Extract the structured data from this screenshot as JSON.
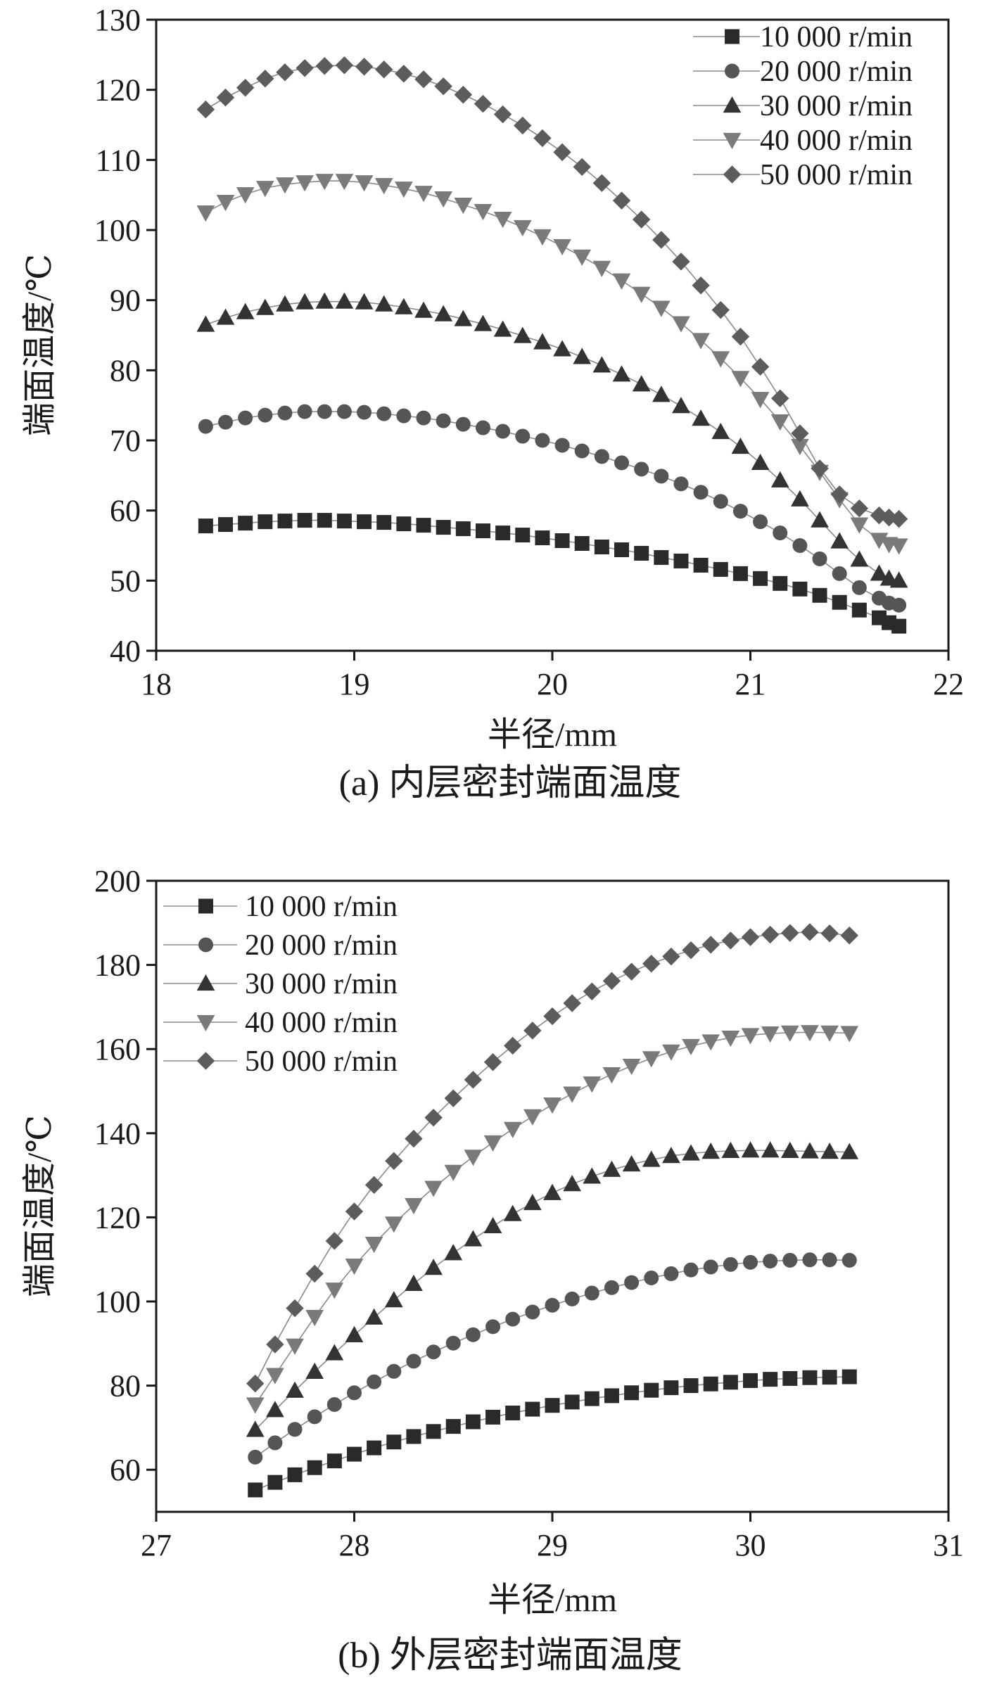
{
  "chart_data": [
    {
      "type": "line",
      "caption": "(a) 内层密封端面温度",
      "xlabel": "半径/mm",
      "ylabel": "端面温度/℃",
      "xlim": [
        18,
        22
      ],
      "ylim": [
        40,
        130
      ],
      "xticks": [
        18,
        19,
        20,
        21,
        22
      ],
      "yticks": [
        40,
        50,
        60,
        70,
        80,
        90,
        100,
        110,
        120,
        130
      ],
      "legend_position": "top-right",
      "grid": false,
      "x": [
        18.25,
        18.35,
        18.45,
        18.55,
        18.65,
        18.75,
        18.85,
        18.95,
        19.05,
        19.15,
        19.25,
        19.35,
        19.45,
        19.55,
        19.65,
        19.75,
        19.85,
        19.95,
        20.05,
        20.15,
        20.25,
        20.35,
        20.45,
        20.55,
        20.65,
        20.75,
        20.85,
        20.95,
        21.05,
        21.15,
        21.25,
        21.35,
        21.45,
        21.55,
        21.65,
        21.7,
        21.75
      ],
      "series": [
        {
          "name": "10 000 r/min",
          "marker": "square",
          "values": [
            57.8,
            58.0,
            58.2,
            58.4,
            58.5,
            58.6,
            58.6,
            58.5,
            58.4,
            58.3,
            58.1,
            57.9,
            57.6,
            57.4,
            57.1,
            56.8,
            56.5,
            56.1,
            55.7,
            55.3,
            54.8,
            54.4,
            53.9,
            53.3,
            52.8,
            52.2,
            51.6,
            51.0,
            50.3,
            49.6,
            48.8,
            47.9,
            46.9,
            45.8,
            44.7,
            44.0,
            43.5
          ]
        },
        {
          "name": "20 000 r/min",
          "marker": "circle",
          "values": [
            72.0,
            72.6,
            73.2,
            73.6,
            73.9,
            74.1,
            74.1,
            74.1,
            74.0,
            73.8,
            73.5,
            73.2,
            72.8,
            72.3,
            71.8,
            71.3,
            70.6,
            70.0,
            69.3,
            68.5,
            67.7,
            66.8,
            65.9,
            64.9,
            63.8,
            62.6,
            61.3,
            59.9,
            58.4,
            56.8,
            55.0,
            53.1,
            51.0,
            49.0,
            47.5,
            46.8,
            46.5
          ]
        },
        {
          "name": "30 000 r/min",
          "marker": "triangle-up",
          "values": [
            86.5,
            87.5,
            88.3,
            88.9,
            89.4,
            89.7,
            89.8,
            89.8,
            89.7,
            89.4,
            89.0,
            88.5,
            88.0,
            87.3,
            86.6,
            85.8,
            84.9,
            84.0,
            83.0,
            81.9,
            80.7,
            79.4,
            78.0,
            76.5,
            74.9,
            73.1,
            71.2,
            69.1,
            66.8,
            64.3,
            61.6,
            58.6,
            55.6,
            53.0,
            51.0,
            50.3,
            50.0
          ]
        },
        {
          "name": "40 000 r/min",
          "marker": "triangle-down",
          "values": [
            102.5,
            104.0,
            105.1,
            106.0,
            106.5,
            106.8,
            107.0,
            107.0,
            106.8,
            106.4,
            105.9,
            105.3,
            104.5,
            103.6,
            102.7,
            101.6,
            100.4,
            99.1,
            97.7,
            96.2,
            94.6,
            92.8,
            90.9,
            88.9,
            86.7,
            84.3,
            81.7,
            78.9,
            75.9,
            72.7,
            69.2,
            65.5,
            61.6,
            58.0,
            55.8,
            55.2,
            55.0
          ]
        },
        {
          "name": "50 000 r/min",
          "marker": "diamond",
          "values": [
            117.2,
            118.9,
            120.3,
            121.6,
            122.5,
            123.1,
            123.4,
            123.5,
            123.3,
            122.9,
            122.3,
            121.5,
            120.5,
            119.3,
            118.0,
            116.5,
            114.9,
            113.1,
            111.1,
            109.0,
            106.7,
            104.2,
            101.5,
            98.6,
            95.5,
            92.1,
            88.6,
            84.8,
            80.5,
            76.0,
            71.0,
            66.0,
            62.3,
            60.3,
            59.3,
            59.0,
            58.8
          ]
        }
      ]
    },
    {
      "type": "line",
      "caption": "(b) 外层密封端面温度",
      "xlabel": "半径/mm",
      "ylabel": "端面温度/℃",
      "xlim": [
        27,
        31
      ],
      "ylim": [
        50,
        200
      ],
      "xticks": [
        27,
        28,
        29,
        30,
        31
      ],
      "yticks": [
        60,
        80,
        100,
        120,
        140,
        160,
        180,
        200
      ],
      "legend_position": "top-left",
      "grid": false,
      "x": [
        27.5,
        27.6,
        27.7,
        27.8,
        27.9,
        28.0,
        28.1,
        28.2,
        28.3,
        28.4,
        28.5,
        28.6,
        28.7,
        28.8,
        28.9,
        29.0,
        29.1,
        29.2,
        29.3,
        29.4,
        29.5,
        29.6,
        29.7,
        29.8,
        29.9,
        30.0,
        30.1,
        30.2,
        30.3,
        30.4,
        30.5
      ],
      "series": [
        {
          "name": "10 000 r/min",
          "marker": "square",
          "values": [
            55.2,
            57.0,
            58.8,
            60.5,
            62.1,
            63.7,
            65.2,
            66.6,
            67.9,
            69.1,
            70.3,
            71.4,
            72.5,
            73.5,
            74.4,
            75.3,
            76.1,
            76.9,
            77.6,
            78.3,
            78.9,
            79.5,
            80.0,
            80.4,
            80.8,
            81.2,
            81.5,
            81.7,
            81.9,
            82.0,
            82.1
          ]
        },
        {
          "name": "20 000 r/min",
          "marker": "circle",
          "values": [
            63.0,
            66.4,
            69.6,
            72.6,
            75.5,
            78.3,
            80.9,
            83.4,
            85.8,
            88.0,
            90.1,
            92.1,
            94.0,
            95.8,
            97.5,
            99.1,
            100.6,
            102.0,
            103.3,
            104.5,
            105.6,
            106.6,
            107.5,
            108.2,
            108.8,
            109.3,
            109.6,
            109.8,
            109.9,
            109.9,
            109.8
          ]
        },
        {
          "name": "30 000 r/min",
          "marker": "triangle-up",
          "values": [
            69.5,
            74.2,
            78.8,
            83.3,
            87.7,
            92.0,
            96.2,
            100.3,
            104.2,
            108.0,
            111.5,
            114.8,
            117.9,
            120.8,
            123.4,
            125.8,
            127.9,
            129.7,
            131.3,
            132.6,
            133.7,
            134.6,
            135.2,
            135.6,
            135.8,
            135.9,
            135.9,
            135.8,
            135.7,
            135.6,
            135.5
          ]
        },
        {
          "name": "40 000 r/min",
          "marker": "triangle-down",
          "values": [
            75.5,
            82.5,
            89.5,
            96.3,
            102.8,
            108.5,
            113.7,
            118.5,
            122.9,
            127.0,
            130.8,
            134.4,
            137.8,
            141.0,
            144.0,
            146.8,
            149.4,
            151.8,
            154.0,
            156.0,
            157.8,
            159.4,
            160.7,
            161.8,
            162.7,
            163.3,
            163.7,
            163.9,
            164.0,
            163.9,
            163.8
          ]
        },
        {
          "name": "50 000 r/min",
          "marker": "diamond",
          "values": [
            80.5,
            89.8,
            98.4,
            106.6,
            114.4,
            121.4,
            127.7,
            133.4,
            138.7,
            143.7,
            148.3,
            152.7,
            156.9,
            160.8,
            164.4,
            167.8,
            170.9,
            173.7,
            176.2,
            178.4,
            180.3,
            182.0,
            183.5,
            184.8,
            185.8,
            186.6,
            187.2,
            187.6,
            187.8,
            187.5,
            187.0
          ]
        }
      ]
    }
  ]
}
